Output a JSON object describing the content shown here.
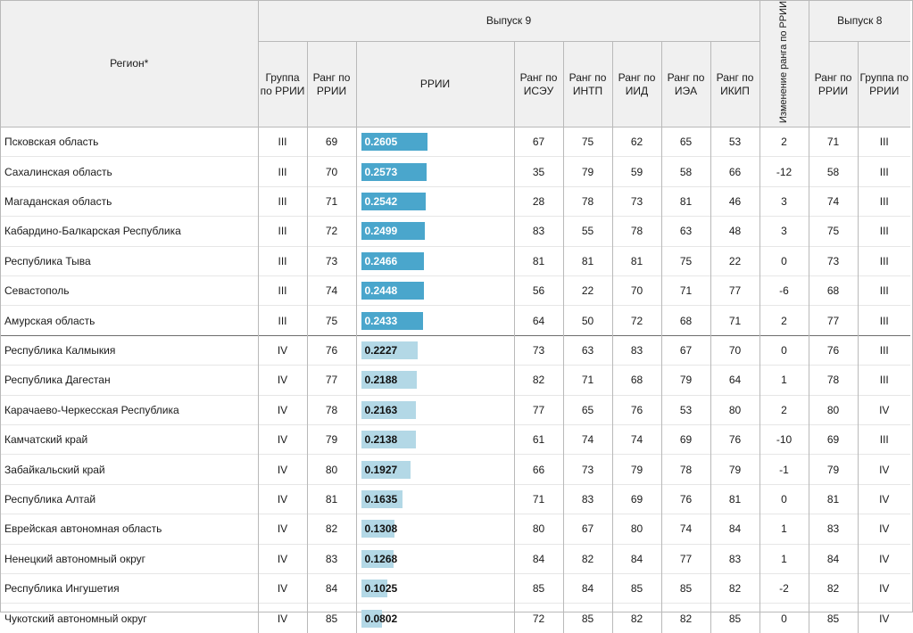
{
  "header": {
    "region": "Регион*",
    "issue9": "Выпуск 9",
    "issue8": "Выпуск 8",
    "change": "Изменение ранга по РРИИ",
    "col_group_rrii": "Группа по РРИИ",
    "col_rank_rrii": "Ранг по РРИИ",
    "col_rrii": "РРИИ",
    "col_rank_iseu": "Ранг по ИСЭУ",
    "col_rank_intp": "Ранг по ИНТП",
    "col_rank_iid": "Ранг по ИИД",
    "col_rank_iea": "Ранг по ИЭА",
    "col_rank_ikip": "Ранг по ИКИП",
    "col_rank_rrii_8": "Ранг по РРИИ",
    "col_group_rrii_8": "Группа по РРИИ"
  },
  "colors": {
    "group_III_bar": "#4aa6cc",
    "group_IV_bar": "#b3d8e6"
  },
  "rows": [
    {
      "region": "Псковская область",
      "group": "III",
      "rank": "69",
      "rrii": "0.2605",
      "iseu": "67",
      "intp": "75",
      "iid": "62",
      "iea": "65",
      "ikip": "53",
      "change": "2",
      "rank8": "71",
      "group8": "III"
    },
    {
      "region": "Сахалинская область",
      "group": "III",
      "rank": "70",
      "rrii": "0.2573",
      "iseu": "35",
      "intp": "79",
      "iid": "59",
      "iea": "58",
      "ikip": "66",
      "change": "-12",
      "rank8": "58",
      "group8": "III"
    },
    {
      "region": "Магаданская область",
      "group": "III",
      "rank": "71",
      "rrii": "0.2542",
      "iseu": "28",
      "intp": "78",
      "iid": "73",
      "iea": "81",
      "ikip": "46",
      "change": "3",
      "rank8": "74",
      "group8": "III"
    },
    {
      "region": "Кабардино-Балкарская Республика",
      "group": "III",
      "rank": "72",
      "rrii": "0.2499",
      "iseu": "83",
      "intp": "55",
      "iid": "78",
      "iea": "63",
      "ikip": "48",
      "change": "3",
      "rank8": "75",
      "group8": "III"
    },
    {
      "region": "Республика Тыва",
      "group": "III",
      "rank": "73",
      "rrii": "0.2466",
      "iseu": "81",
      "intp": "81",
      "iid": "81",
      "iea": "75",
      "ikip": "22",
      "change": "0",
      "rank8": "73",
      "group8": "III"
    },
    {
      "region": "Севастополь",
      "group": "III",
      "rank": "74",
      "rrii": "0.2448",
      "iseu": "56",
      "intp": "22",
      "iid": "70",
      "iea": "71",
      "ikip": "77",
      "change": "-6",
      "rank8": "68",
      "group8": "III"
    },
    {
      "region": "Амурская область",
      "group": "III",
      "rank": "75",
      "rrii": "0.2433",
      "iseu": "64",
      "intp": "50",
      "iid": "72",
      "iea": "68",
      "ikip": "71",
      "change": "2",
      "rank8": "77",
      "group8": "III"
    },
    {
      "region": "Республика Калмыкия",
      "group": "IV",
      "rank": "76",
      "rrii": "0.2227",
      "iseu": "73",
      "intp": "63",
      "iid": "83",
      "iea": "67",
      "ikip": "70",
      "change": "0",
      "rank8": "76",
      "group8": "III"
    },
    {
      "region": "Республика Дагестан",
      "group": "IV",
      "rank": "77",
      "rrii": "0.2188",
      "iseu": "82",
      "intp": "71",
      "iid": "68",
      "iea": "79",
      "ikip": "64",
      "change": "1",
      "rank8": "78",
      "group8": "III"
    },
    {
      "region": "Карачаево-Черкесская Республика",
      "group": "IV",
      "rank": "78",
      "rrii": "0.2163",
      "iseu": "77",
      "intp": "65",
      "iid": "76",
      "iea": "53",
      "ikip": "80",
      "change": "2",
      "rank8": "80",
      "group8": "IV"
    },
    {
      "region": "Камчатский край",
      "group": "IV",
      "rank": "79",
      "rrii": "0.2138",
      "iseu": "61",
      "intp": "74",
      "iid": "74",
      "iea": "69",
      "ikip": "76",
      "change": "-10",
      "rank8": "69",
      "group8": "III"
    },
    {
      "region": "Забайкальский край",
      "group": "IV",
      "rank": "80",
      "rrii": "0.1927",
      "iseu": "66",
      "intp": "73",
      "iid": "79",
      "iea": "78",
      "ikip": "79",
      "change": "-1",
      "rank8": "79",
      "group8": "IV"
    },
    {
      "region": "Республика Алтай",
      "group": "IV",
      "rank": "81",
      "rrii": "0.1635",
      "iseu": "71",
      "intp": "83",
      "iid": "69",
      "iea": "76",
      "ikip": "81",
      "change": "0",
      "rank8": "81",
      "group8": "IV"
    },
    {
      "region": "Еврейская автономная область",
      "group": "IV",
      "rank": "82",
      "rrii": "0.1308",
      "iseu": "80",
      "intp": "67",
      "iid": "80",
      "iea": "74",
      "ikip": "84",
      "change": "1",
      "rank8": "83",
      "group8": "IV"
    },
    {
      "region": "Ненецкий автономный округ",
      "group": "IV",
      "rank": "83",
      "rrii": "0.1268",
      "iseu": "84",
      "intp": "82",
      "iid": "84",
      "iea": "77",
      "ikip": "83",
      "change": "1",
      "rank8": "84",
      "group8": "IV"
    },
    {
      "region": "Республика Ингушетия",
      "group": "IV",
      "rank": "84",
      "rrii": "0.1025",
      "iseu": "85",
      "intp": "84",
      "iid": "85",
      "iea": "85",
      "ikip": "82",
      "change": "-2",
      "rank8": "82",
      "group8": "IV"
    },
    {
      "region": "Чукотский автономный округ",
      "group": "IV",
      "rank": "85",
      "rrii": "0.0802",
      "iseu": "72",
      "intp": "85",
      "iid": "82",
      "iea": "82",
      "ikip": "85",
      "change": "0",
      "rank8": "85",
      "group8": "IV"
    }
  ]
}
